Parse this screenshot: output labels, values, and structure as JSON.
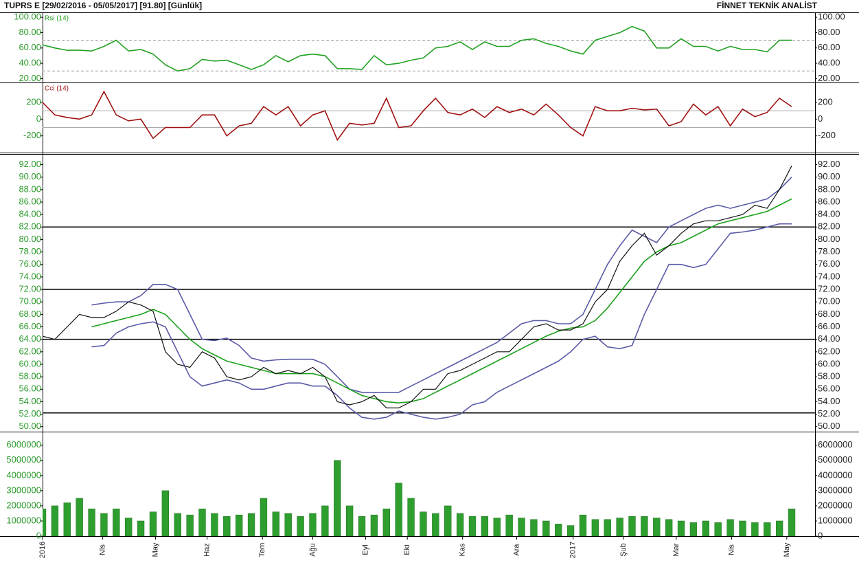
{
  "header": {
    "title": "TUPRS E  [29/02/2016 - 05/05/2017]  [91.80]  [Günlük]",
    "brand": "FİNNET TEKNİK ANALİST"
  },
  "chart_data": [
    {
      "type": "line",
      "title": "Rsi (14)",
      "x": [
        0,
        1,
        2,
        3,
        4,
        5,
        6,
        7,
        8,
        9,
        10,
        11,
        12,
        13,
        14,
        15,
        16,
        17,
        18,
        19,
        20,
        21,
        22,
        23,
        24,
        25,
        26,
        27,
        28,
        29,
        30,
        31,
        32,
        33,
        34,
        35,
        36,
        37,
        38,
        39,
        40,
        41,
        42,
        43,
        44,
        45,
        46,
        47,
        48,
        49,
        50,
        51,
        52,
        53,
        54,
        55,
        56,
        57,
        58,
        59,
        60,
        61
      ],
      "xlim": [
        0,
        62.9
      ],
      "ylim": [
        15,
        105.5
      ],
      "yticks": [
        {
          "value": 100,
          "label": "100.00"
        },
        {
          "value": 80,
          "label": "80.00"
        },
        {
          "value": 60,
          "label": "60.00"
        },
        {
          "value": 40,
          "label": "40.00"
        },
        {
          "value": 20,
          "label": "20.00"
        }
      ],
      "reference_lines": [
        70,
        30
      ],
      "reference_color": "#999999",
      "series": [
        {
          "color": "#22a022",
          "values": [
            64,
            60,
            57,
            57,
            56,
            62,
            70,
            56,
            58,
            52,
            38,
            30,
            33,
            45,
            43,
            44,
            38,
            32,
            38,
            50,
            42,
            50,
            52,
            50,
            33,
            33,
            32,
            50,
            38,
            40,
            44,
            47,
            60,
            62,
            68,
            58,
            68,
            62,
            62,
            70,
            72,
            66,
            62,
            56,
            52,
            70,
            75,
            80,
            88,
            82,
            60,
            60,
            72,
            62,
            62,
            56,
            62,
            58,
            58,
            55,
            70,
            70
          ]
        }
      ]
    },
    {
      "type": "line",
      "title": "Cci (14)",
      "x": [
        0,
        1,
        2,
        3,
        4,
        5,
        6,
        7,
        8,
        9,
        10,
        11,
        12,
        13,
        14,
        15,
        16,
        17,
        18,
        19,
        20,
        21,
        22,
        23,
        24,
        25,
        26,
        27,
        28,
        29,
        30,
        31,
        32,
        33,
        34,
        35,
        36,
        37,
        38,
        39,
        40,
        41,
        42,
        43,
        44,
        45,
        46,
        47,
        48,
        49,
        50,
        51,
        52,
        53,
        54,
        55,
        56,
        57,
        58,
        59,
        60,
        61
      ],
      "xlim": [
        0,
        62.9
      ],
      "ylim": [
        -400,
        430
      ],
      "yticks": [
        200,
        0,
        -200
      ],
      "reference_lines": [
        100,
        -100
      ],
      "reference_color": "#aaaaaa",
      "series": [
        {
          "color": "#a01010",
          "values": [
            200,
            50,
            20,
            0,
            50,
            330,
            50,
            -20,
            0,
            -230,
            -100,
            -100,
            -100,
            50,
            50,
            -200,
            -80,
            -50,
            150,
            50,
            150,
            -80,
            50,
            100,
            -250,
            -50,
            -70,
            -50,
            250,
            -100,
            -80,
            100,
            250,
            80,
            50,
            120,
            20,
            150,
            80,
            120,
            50,
            180,
            50,
            -100,
            -200,
            150,
            100,
            100,
            130,
            110,
            120,
            -80,
            -30,
            180,
            50,
            150,
            -80,
            120,
            30,
            80,
            250,
            150
          ]
        }
      ]
    },
    {
      "type": "line",
      "x": [
        0,
        1,
        2,
        3,
        4,
        5,
        6,
        7,
        8,
        9,
        10,
        11,
        12,
        13,
        14,
        15,
        16,
        17,
        18,
        19,
        20,
        21,
        22,
        23,
        24,
        25,
        26,
        27,
        28,
        29,
        30,
        31,
        32,
        33,
        34,
        35,
        36,
        37,
        38,
        39,
        40,
        41,
        42,
        43,
        44,
        45,
        46,
        47,
        48,
        49,
        50,
        51,
        52,
        53,
        54,
        55,
        56,
        57,
        58,
        59,
        60,
        61
      ],
      "xlim": [
        0,
        62.9
      ],
      "ylim": [
        49.2,
        93.6
      ],
      "yticks": [
        {
          "value": 92,
          "label": "92.00"
        },
        {
          "value": 90,
          "label": "90.00"
        },
        {
          "value": 88,
          "label": "88.00"
        },
        {
          "value": 86,
          "label": "86.00"
        },
        {
          "value": 84,
          "label": "84.00"
        },
        {
          "value": 82,
          "label": "82.00"
        },
        {
          "value": 80,
          "label": "80.00"
        },
        {
          "value": 78,
          "label": "78.00"
        },
        {
          "value": 76,
          "label": "76.00"
        },
        {
          "value": 74,
          "label": "74.00"
        },
        {
          "value": 72,
          "label": "72.00"
        },
        {
          "value": 70,
          "label": "70.00"
        },
        {
          "value": 68,
          "label": "68.00"
        },
        {
          "value": 66,
          "label": "66.00"
        },
        {
          "value": 64,
          "label": "64.00"
        },
        {
          "value": 62,
          "label": "62.00"
        },
        {
          "value": 60,
          "label": "60.00"
        },
        {
          "value": 58,
          "label": "58.00"
        },
        {
          "value": 56,
          "label": "56.00"
        },
        {
          "value": 54,
          "label": "54.00"
        },
        {
          "value": 52,
          "label": "52.00"
        },
        {
          "value": 50,
          "label": "50.00"
        }
      ],
      "reference_lines": [
        82,
        72,
        64,
        52.2
      ],
      "reference_color": "#000000",
      "series": [
        {
          "color": "#5a5aa8",
          "values": [
            null,
            null,
            null,
            null,
            69.5,
            69.8,
            70,
            70,
            71,
            72.8,
            72.8,
            72,
            68,
            64,
            63.8,
            64.2,
            63,
            61,
            60.5,
            60.7,
            60.8,
            60.8,
            60.8,
            60,
            58,
            56,
            55.5,
            55.5,
            55.5,
            55.5,
            56.5,
            57.5,
            58.5,
            59.5,
            60.5,
            61.5,
            62.5,
            63.5,
            65,
            66.5,
            67,
            67,
            66.5,
            66.5,
            68,
            72,
            76,
            79,
            81.5,
            80.5,
            79.5,
            82,
            83,
            84,
            85,
            85.5,
            85,
            85.5,
            86,
            86.5,
            88,
            90
          ]
        },
        {
          "color": "#5a5aa8",
          "values": [
            null,
            null,
            null,
            null,
            62.8,
            63,
            65,
            66,
            66.5,
            66.8,
            66,
            62,
            58,
            56.5,
            57,
            57.5,
            57,
            56,
            56,
            56.5,
            57,
            57,
            56.5,
            56.5,
            55,
            53,
            51.5,
            51.2,
            51.5,
            52.5,
            52,
            51.5,
            51.2,
            51.5,
            52,
            53.5,
            54,
            55.5,
            56.5,
            57.5,
            58.5,
            59.5,
            60.5,
            62,
            64,
            64.5,
            62.8,
            62.5,
            63,
            68,
            72,
            76,
            76,
            75.5,
            76,
            78.5,
            81,
            81.2,
            81.5,
            82,
            82.5,
            82.5
          ]
        },
        {
          "color": "#1aa01a",
          "values": [
            null,
            null,
            null,
            null,
            66,
            66.5,
            67,
            67.5,
            68,
            68.8,
            68,
            66,
            64,
            62.5,
            61.5,
            60.5,
            60,
            59.5,
            59,
            58.5,
            58.5,
            58.5,
            58.5,
            58,
            57,
            56,
            55,
            54.5,
            54,
            53.8,
            54,
            54.5,
            55.5,
            56.5,
            57.5,
            58.5,
            59.5,
            60.5,
            61.5,
            62.5,
            63.5,
            64.5,
            65.3,
            65.8,
            66,
            67,
            69,
            71.5,
            74,
            76.5,
            78,
            79,
            79.5,
            80.5,
            81.5,
            82.5,
            83,
            83.5,
            84,
            84.5,
            85.5,
            86.5
          ]
        },
        {
          "color": "#111111",
          "values": [
            64.5,
            64,
            66,
            68,
            67.5,
            67.5,
            68.5,
            70,
            69.5,
            68.5,
            62,
            60,
            59.5,
            62,
            61,
            58,
            57.5,
            58,
            59.5,
            58.5,
            59,
            58.5,
            59.5,
            58,
            54,
            53.5,
            54,
            55,
            53,
            53,
            54,
            56,
            56,
            58.5,
            59,
            60,
            61,
            62,
            62,
            64,
            66,
            66.5,
            65.5,
            65.5,
            66.5,
            70,
            72,
            76.5,
            79,
            81,
            77.5,
            79,
            81,
            82.5,
            83,
            83,
            83.5,
            84,
            85.5,
            85,
            88,
            91.8
          ]
        }
      ]
    },
    {
      "type": "bar",
      "x": [
        0,
        1,
        2,
        3,
        4,
        5,
        6,
        7,
        8,
        9,
        10,
        11,
        12,
        13,
        14,
        15,
        16,
        17,
        18,
        19,
        20,
        21,
        22,
        23,
        24,
        25,
        26,
        27,
        28,
        29,
        30,
        31,
        32,
        33,
        34,
        35,
        36,
        37,
        38,
        39,
        40,
        41,
        42,
        43,
        44,
        45,
        46,
        47,
        48,
        49,
        50,
        51,
        52,
        53,
        54,
        55,
        56,
        57,
        58,
        59,
        60,
        61
      ],
      "xlim": [
        0,
        62.9
      ],
      "ylim": [
        0,
        6850000
      ],
      "yticks": [
        6000000,
        5000000,
        4000000,
        3000000,
        2000000,
        1000000,
        0
      ],
      "color": "#2e9e2e",
      "values": [
        1800000,
        2000000,
        2200000,
        2500000,
        1800000,
        1500000,
        1800000,
        1200000,
        1000000,
        1600000,
        3000000,
        1500000,
        1400000,
        1800000,
        1500000,
        1300000,
        1400000,
        1500000,
        2500000,
        1600000,
        1500000,
        1300000,
        1500000,
        2000000,
        5000000,
        2000000,
        1300000,
        1400000,
        1800000,
        3500000,
        2500000,
        1600000,
        1500000,
        2000000,
        1500000,
        1300000,
        1300000,
        1200000,
        1400000,
        1200000,
        1100000,
        1000000,
        800000,
        700000,
        1400000,
        1100000,
        1100000,
        1200000,
        1300000,
        1300000,
        1200000,
        1100000,
        1000000,
        900000,
        1000000,
        900000,
        1100000,
        1000000,
        900000,
        900000,
        1000000,
        1800000
      ],
      "xticks": [
        {
          "value": 0,
          "label": "2016"
        },
        {
          "value": 4.9,
          "label": "Nls"
        },
        {
          "value": 9.2,
          "label": "May"
        },
        {
          "value": 13.4,
          "label": "Haz"
        },
        {
          "value": 17.9,
          "label": "Tem"
        },
        {
          "value": 22,
          "label": "Ağu"
        },
        {
          "value": 26.3,
          "label": "Eyl"
        },
        {
          "value": 29.7,
          "label": "Eki"
        },
        {
          "value": 34.2,
          "label": "Kas"
        },
        {
          "value": 38.6,
          "label": "Ara"
        },
        {
          "value": 43.2,
          "label": "2017"
        },
        {
          "value": 47.3,
          "label": "Şub"
        },
        {
          "value": 51.6,
          "label": "Mar"
        },
        {
          "value": 56.1,
          "label": "Nis"
        },
        {
          "value": 60.6,
          "label": "May"
        }
      ]
    }
  ]
}
